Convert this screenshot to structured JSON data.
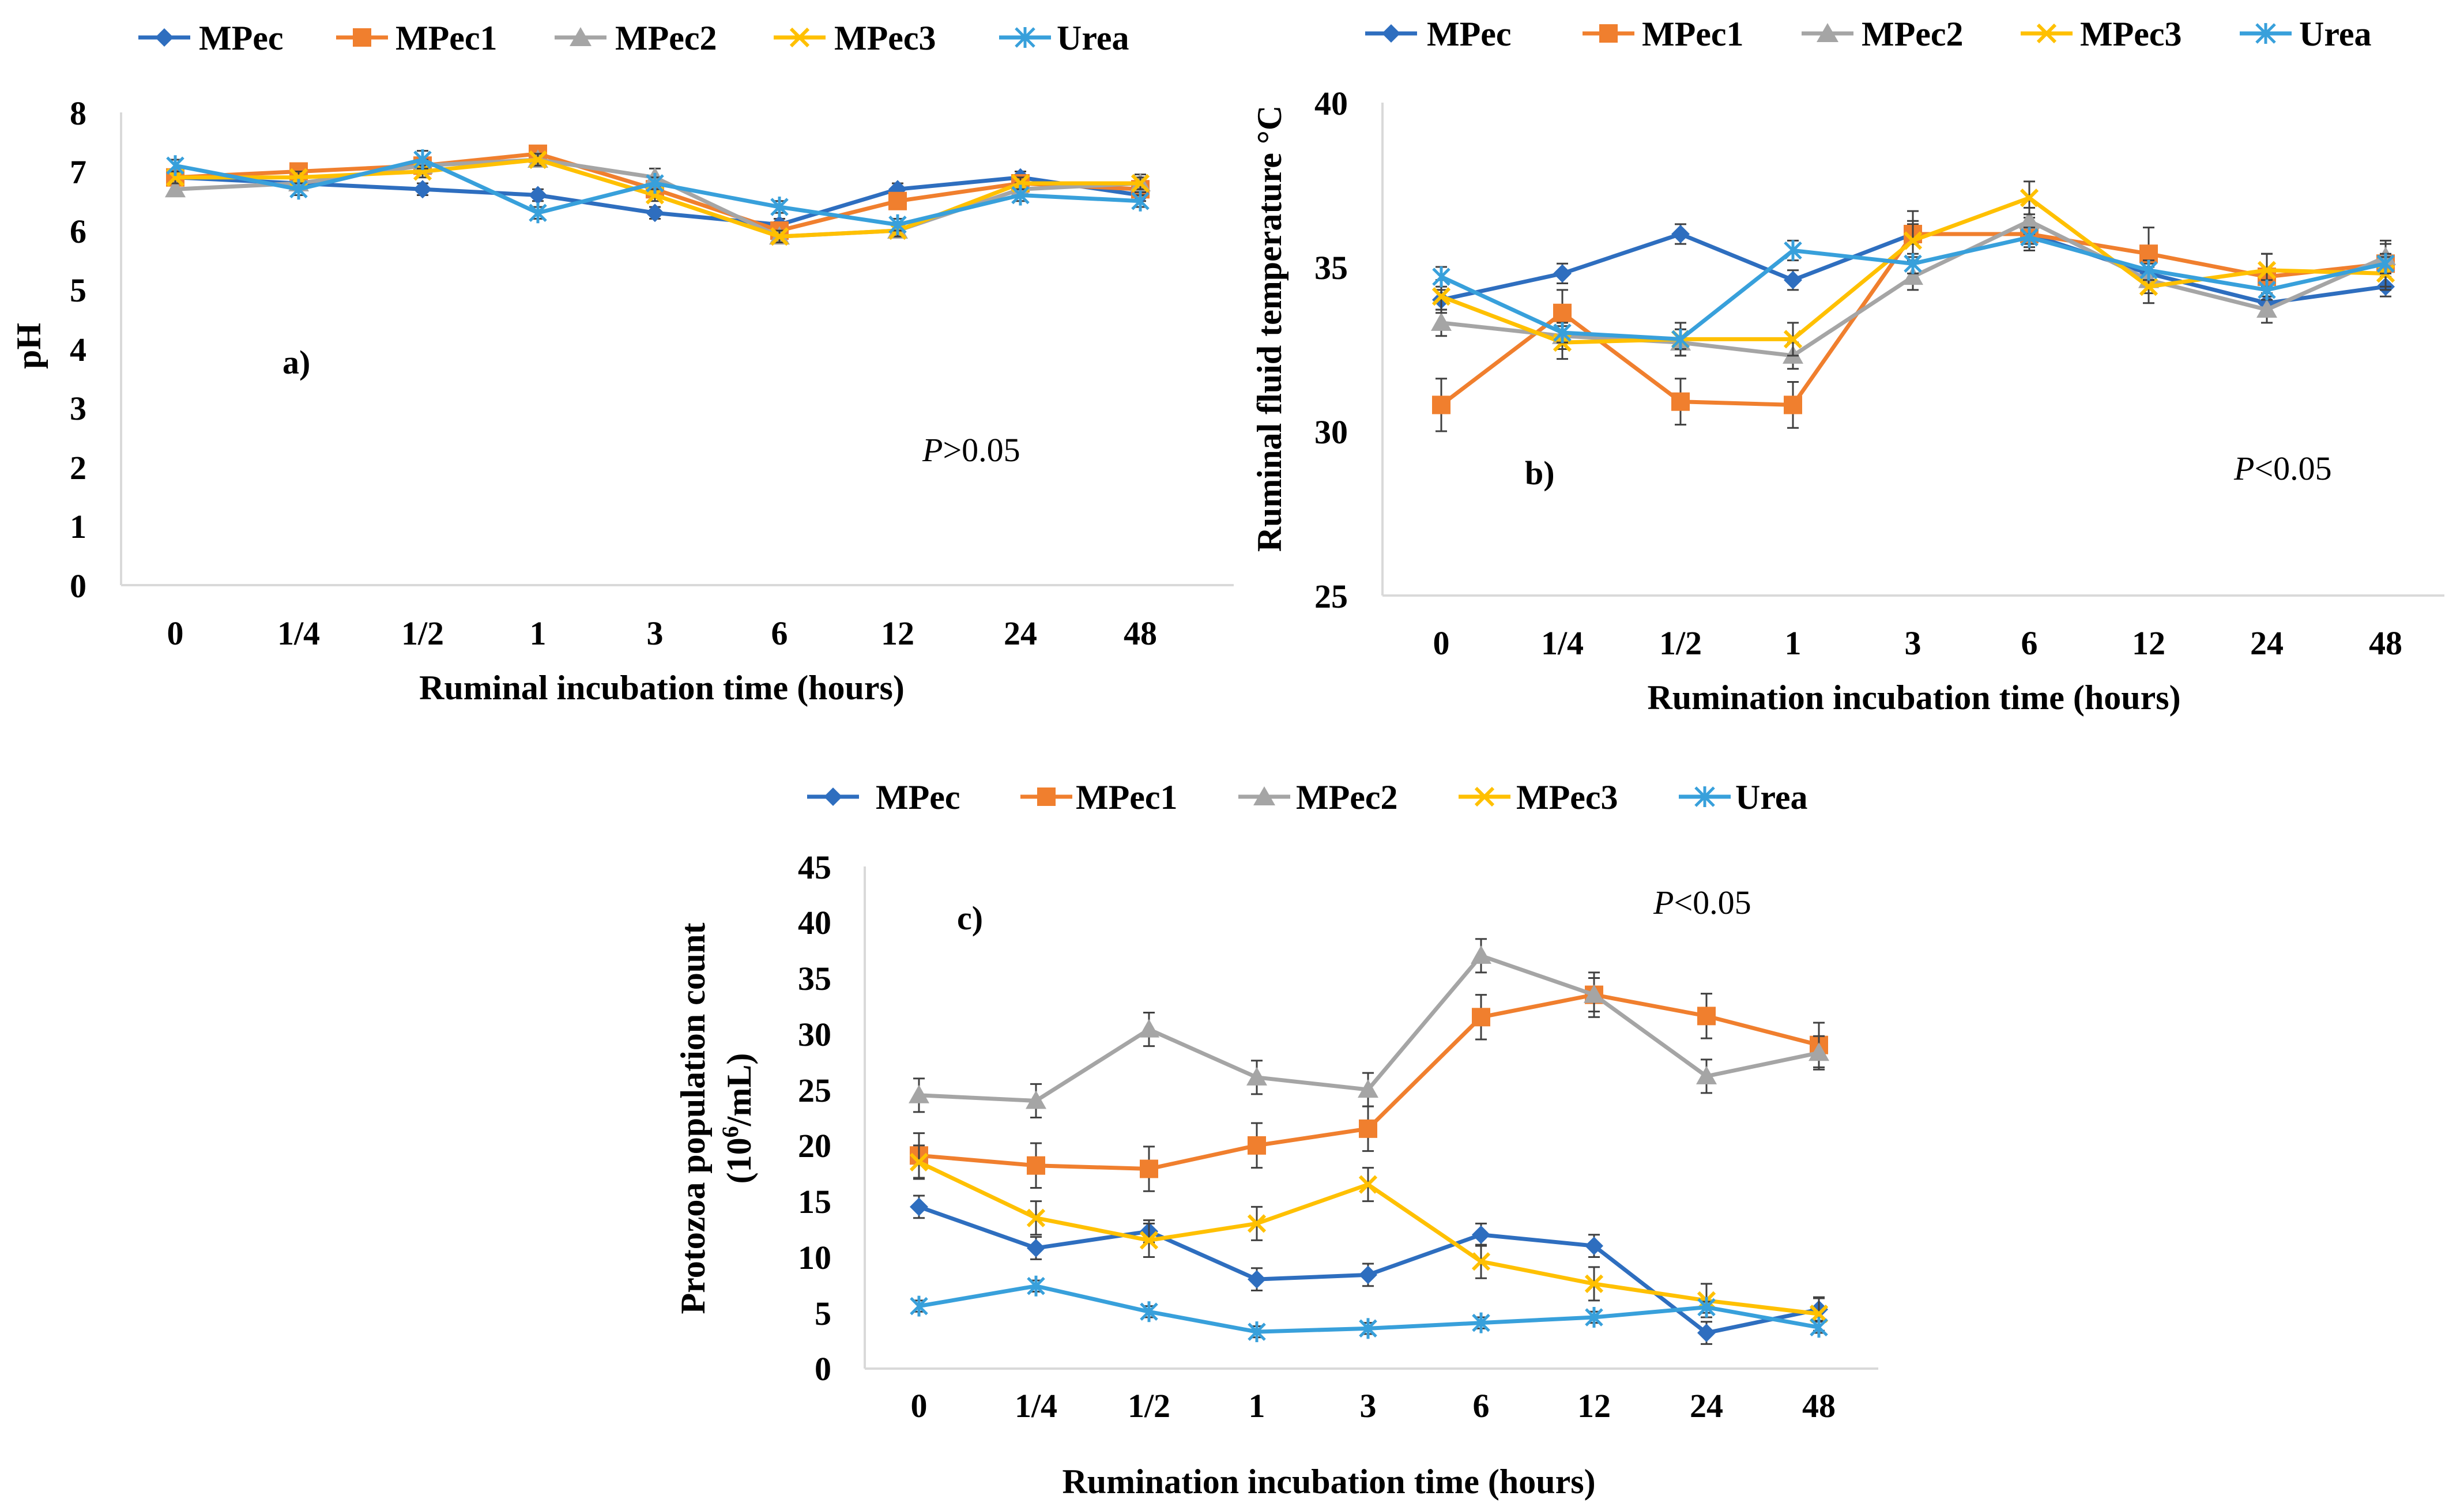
{
  "figure": {
    "legend": [
      "MPec",
      "MPec1",
      "MPec2",
      "MPec3",
      "Urea"
    ],
    "categories": [
      "0",
      "1/4",
      "1/2",
      "1",
      "3",
      "6",
      "12",
      "24",
      "48"
    ],
    "series_styles": [
      {
        "name": "MPec",
        "color": "#2E6EBF",
        "marker": "diamond"
      },
      {
        "name": "MPec1",
        "color": "#F07F2E",
        "marker": "square"
      },
      {
        "name": "MPec2",
        "color": "#A5A5A5",
        "marker": "triangle"
      },
      {
        "name": "MPec3",
        "color": "#FFC000",
        "marker": "x"
      },
      {
        "name": "Urea",
        "color": "#38A0DB",
        "marker": "asterisk"
      }
    ]
  },
  "chart_data": [
    {
      "type": "line",
      "panel_label": "a)",
      "p_italic": "P",
      "p_rest": ">0.05",
      "xlabel": "Ruminal incubation time (hours)",
      "ylabel": "pH",
      "ylim": [
        0,
        8
      ],
      "yticks": [
        "0",
        "1",
        "2",
        "3",
        "4",
        "5",
        "6",
        "7",
        "8"
      ],
      "categories": [
        "0",
        "1/4",
        "1/2",
        "1",
        "3",
        "6",
        "12",
        "24",
        "48"
      ],
      "series": [
        {
          "name": "MPec",
          "values": [
            6.9,
            6.8,
            6.7,
            6.6,
            6.3,
            6.1,
            6.7,
            6.9,
            6.6
          ],
          "errors": [
            0.1,
            0.1,
            0.1,
            0.1,
            0.1,
            0.1,
            0.1,
            0.1,
            0.1
          ]
        },
        {
          "name": "MPec1",
          "values": [
            6.9,
            7.0,
            7.1,
            7.3,
            6.7,
            6.0,
            6.5,
            6.8,
            6.7
          ],
          "errors": [
            0.1,
            0.1,
            0.1,
            0.1,
            0.1,
            0.1,
            0.1,
            0.1,
            0.1
          ]
        },
        {
          "name": "MPec2",
          "values": [
            6.7,
            6.8,
            7.1,
            7.2,
            6.9,
            5.9,
            6.0,
            6.7,
            6.8
          ],
          "errors": [
            0.1,
            0.1,
            0.1,
            0.1,
            0.15,
            0.1,
            0.1,
            0.1,
            0.15
          ]
        },
        {
          "name": "MPec3",
          "values": [
            6.9,
            6.9,
            7.0,
            7.2,
            6.6,
            5.9,
            6.0,
            6.8,
            6.8
          ],
          "errors": [
            0.1,
            0.1,
            0.1,
            0.1,
            0.1,
            0.1,
            0.1,
            0.1,
            0.1
          ]
        },
        {
          "name": "Urea",
          "values": [
            7.1,
            6.7,
            7.2,
            6.3,
            6.8,
            6.4,
            6.1,
            6.6,
            6.5
          ],
          "errors": [
            0.1,
            0.1,
            0.15,
            0.1,
            0.1,
            0.1,
            0.1,
            0.1,
            0.1
          ]
        }
      ]
    },
    {
      "type": "line",
      "panel_label": "b)",
      "p_italic": "P",
      "p_rest": "<0.05",
      "xlabel": "Rumination incubation time (hours)",
      "ylabel": "Ruminal fluid temperature °C",
      "ylim": [
        25,
        40
      ],
      "yticks": [
        "25",
        "30",
        "35",
        "40"
      ],
      "categories": [
        "0",
        "1/4",
        "1/2",
        "1",
        "3",
        "6",
        "12",
        "24",
        "48"
      ],
      "series": [
        {
          "name": "MPec",
          "values": [
            34.0,
            34.8,
            36.0,
            34.6,
            36.0,
            36.0,
            34.8,
            33.9,
            34.4
          ],
          "errors": [
            0.3,
            0.3,
            0.3,
            0.3,
            0.3,
            0.3,
            0.3,
            0.3,
            0.3
          ]
        },
        {
          "name": "MPec1",
          "values": [
            30.8,
            33.6,
            30.9,
            30.8,
            36.0,
            36.0,
            35.4,
            34.7,
            35.1
          ],
          "errors": [
            0.8,
            0.7,
            0.7,
            0.7,
            0.7,
            0.5,
            0.8,
            0.7,
            0.7
          ]
        },
        {
          "name": "MPec2",
          "values": [
            33.3,
            32.9,
            32.7,
            32.3,
            34.7,
            36.4,
            34.6,
            33.7,
            35.3
          ],
          "errors": [
            0.4,
            0.4,
            0.4,
            0.4,
            0.4,
            0.4,
            0.4,
            0.4,
            0.4
          ]
        },
        {
          "name": "MPec3",
          "values": [
            34.1,
            32.7,
            32.8,
            32.8,
            35.8,
            37.1,
            34.4,
            34.9,
            34.8
          ],
          "errors": [
            0.5,
            0.5,
            0.5,
            0.5,
            0.6,
            0.5,
            0.5,
            0.5,
            0.5
          ]
        },
        {
          "name": "Urea",
          "values": [
            34.7,
            33.0,
            32.8,
            35.5,
            35.1,
            35.9,
            34.9,
            34.3,
            35.1
          ],
          "errors": [
            0.3,
            0.3,
            0.3,
            0.3,
            0.3,
            0.3,
            0.3,
            0.3,
            0.3
          ]
        }
      ]
    },
    {
      "type": "line",
      "panel_label": "c)",
      "p_italic": "P",
      "p_rest": "<0.05",
      "xlabel": "Rumination incubation time (hours)",
      "ylabel_line1": "Protozoa population count",
      "ylabel_line2_prefix": "(10",
      "ylabel_line2_sup": "6",
      "ylabel_line2_suffix": "/mL)",
      "ylim": [
        0,
        45
      ],
      "yticks": [
        "0",
        "5",
        "10",
        "15",
        "20",
        "25",
        "30",
        "35",
        "40",
        "45"
      ],
      "categories": [
        "0",
        "1/4",
        "1/2",
        "1",
        "3",
        "6",
        "12",
        "24",
        "48"
      ],
      "series": [
        {
          "name": "MPec",
          "values": [
            14.5,
            10.8,
            12.3,
            8.0,
            8.4,
            12.0,
            11.0,
            3.2,
            5.3
          ],
          "errors": [
            1.0,
            1.0,
            1.0,
            1.0,
            1.0,
            1.0,
            1.0,
            1.0,
            1.0
          ]
        },
        {
          "name": "MPec1",
          "values": [
            19.1,
            18.2,
            17.9,
            20.0,
            21.5,
            31.5,
            33.5,
            31.6,
            29.0
          ],
          "errors": [
            2.0,
            2.0,
            2.0,
            2.0,
            2.0,
            2.0,
            2.0,
            2.0,
            2.0
          ]
        },
        {
          "name": "MPec2",
          "values": [
            24.5,
            24.0,
            30.4,
            26.1,
            25.0,
            37.0,
            33.5,
            26.2,
            28.3
          ],
          "errors": [
            1.5,
            1.5,
            1.5,
            1.5,
            1.5,
            1.5,
            1.5,
            1.5,
            1.5
          ]
        },
        {
          "name": "MPec3",
          "values": [
            18.5,
            13.5,
            11.5,
            13.0,
            16.5,
            9.6,
            7.6,
            6.1,
            4.9
          ],
          "errors": [
            1.5,
            1.5,
            1.5,
            1.5,
            1.5,
            1.5,
            1.5,
            1.5,
            1.5
          ]
        },
        {
          "name": "Urea",
          "values": [
            5.6,
            7.4,
            5.1,
            3.3,
            3.6,
            4.1,
            4.6,
            5.5,
            3.7
          ],
          "errors": [
            0.5,
            0.5,
            0.5,
            0.5,
            0.5,
            0.5,
            0.5,
            0.5,
            0.5
          ]
        }
      ]
    }
  ]
}
